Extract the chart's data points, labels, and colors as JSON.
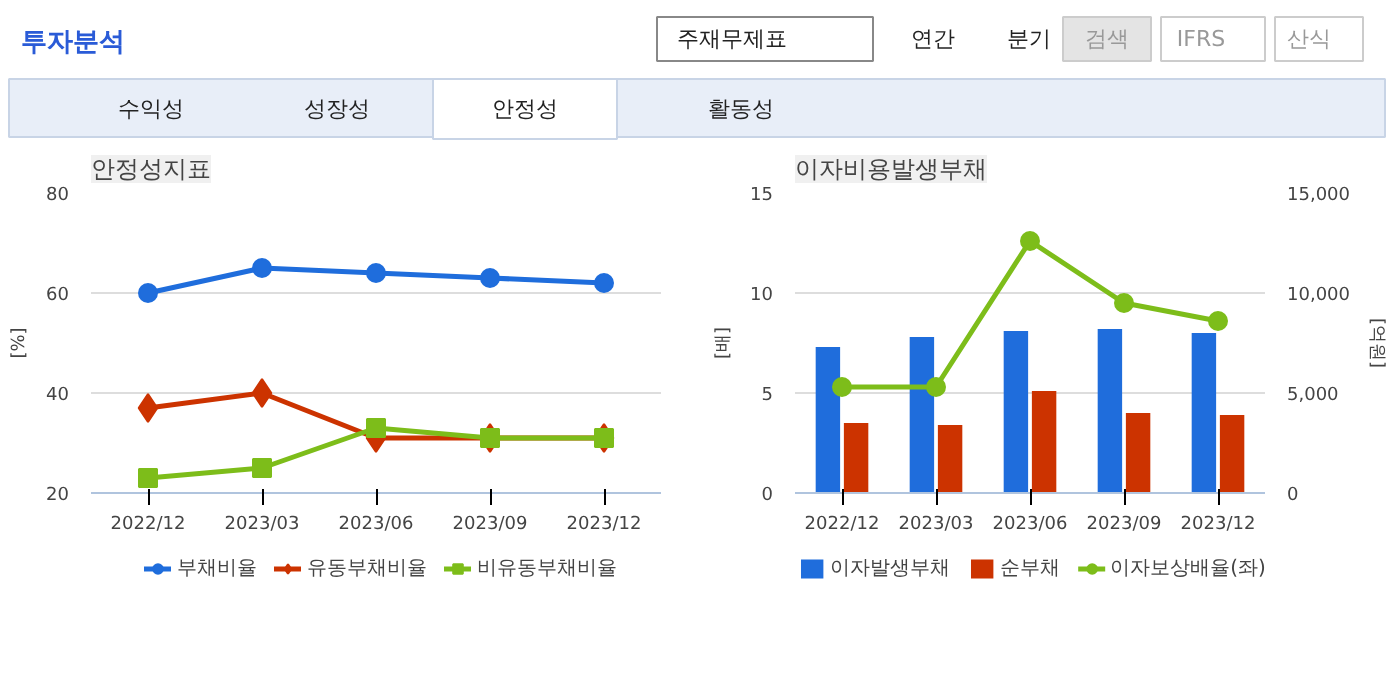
{
  "chart_data": [
    {
      "type": "other",
      "title": "투자분석",
      "annotations": [
        "주재무제표",
        "연간",
        "분기",
        "검색",
        "IFRS",
        "산식",
        "수익성",
        "성장성",
        "안정성",
        "활동성"
      ]
    },
    {
      "type": "line",
      "title": "안정성지표",
      "ylabel": "[%]",
      "categories": [
        "2022/12",
        "2023/03",
        "2023/06",
        "2023/09",
        "2023/12"
      ],
      "ylim": [
        20,
        80
      ],
      "yticks": [
        20,
        40,
        60,
        80
      ],
      "grid": "y",
      "legend": "bottom",
      "series": [
        {
          "name": "부채비율",
          "color": "#1f6ddc",
          "marker": "circle",
          "values": [
            60,
            65,
            64,
            63,
            62
          ]
        },
        {
          "name": "유동부채비율",
          "color": "#cc3300",
          "marker": "diamond",
          "values": [
            37,
            40,
            31,
            31,
            31
          ]
        },
        {
          "name": "비유동부채비율",
          "color": "#7dbd1a",
          "marker": "square",
          "values": [
            23,
            25,
            33,
            31,
            31
          ]
        }
      ]
    },
    {
      "type": "bar",
      "title": "이자비용발생부채",
      "ylabel": "[배]",
      "y2label": "[억원]",
      "categories": [
        "2022/12",
        "2023/03",
        "2023/06",
        "2023/09",
        "2023/12"
      ],
      "ylim": [
        0,
        15
      ],
      "yticks": [
        0,
        5,
        10,
        15
      ],
      "y2lim": [
        0,
        15000
      ],
      "y2ticks": [
        0,
        {
          "value": 5000,
          "label": "5,000"
        },
        {
          "value": 10000,
          "label": "10,000"
        },
        {
          "value": 15000,
          "label": "15,000"
        }
      ],
      "grid": "y",
      "legend": "bottom",
      "series": [
        {
          "name": "이자발생부채",
          "color": "#1f6ddc",
          "axis": "y2",
          "values": [
            7300,
            7800,
            8100,
            8200,
            8000
          ]
        },
        {
          "name": "순부채",
          "color": "#cc3300",
          "axis": "y2",
          "values": [
            3500,
            3400,
            5100,
            4000,
            3900
          ]
        },
        {
          "name": "이자보상배율(좌)",
          "type": "line",
          "color": "#7dbd1a",
          "marker": "circle",
          "values": [
            5.3,
            5.3,
            12.6,
            9.5,
            8.6
          ]
        }
      ]
    }
  ]
}
